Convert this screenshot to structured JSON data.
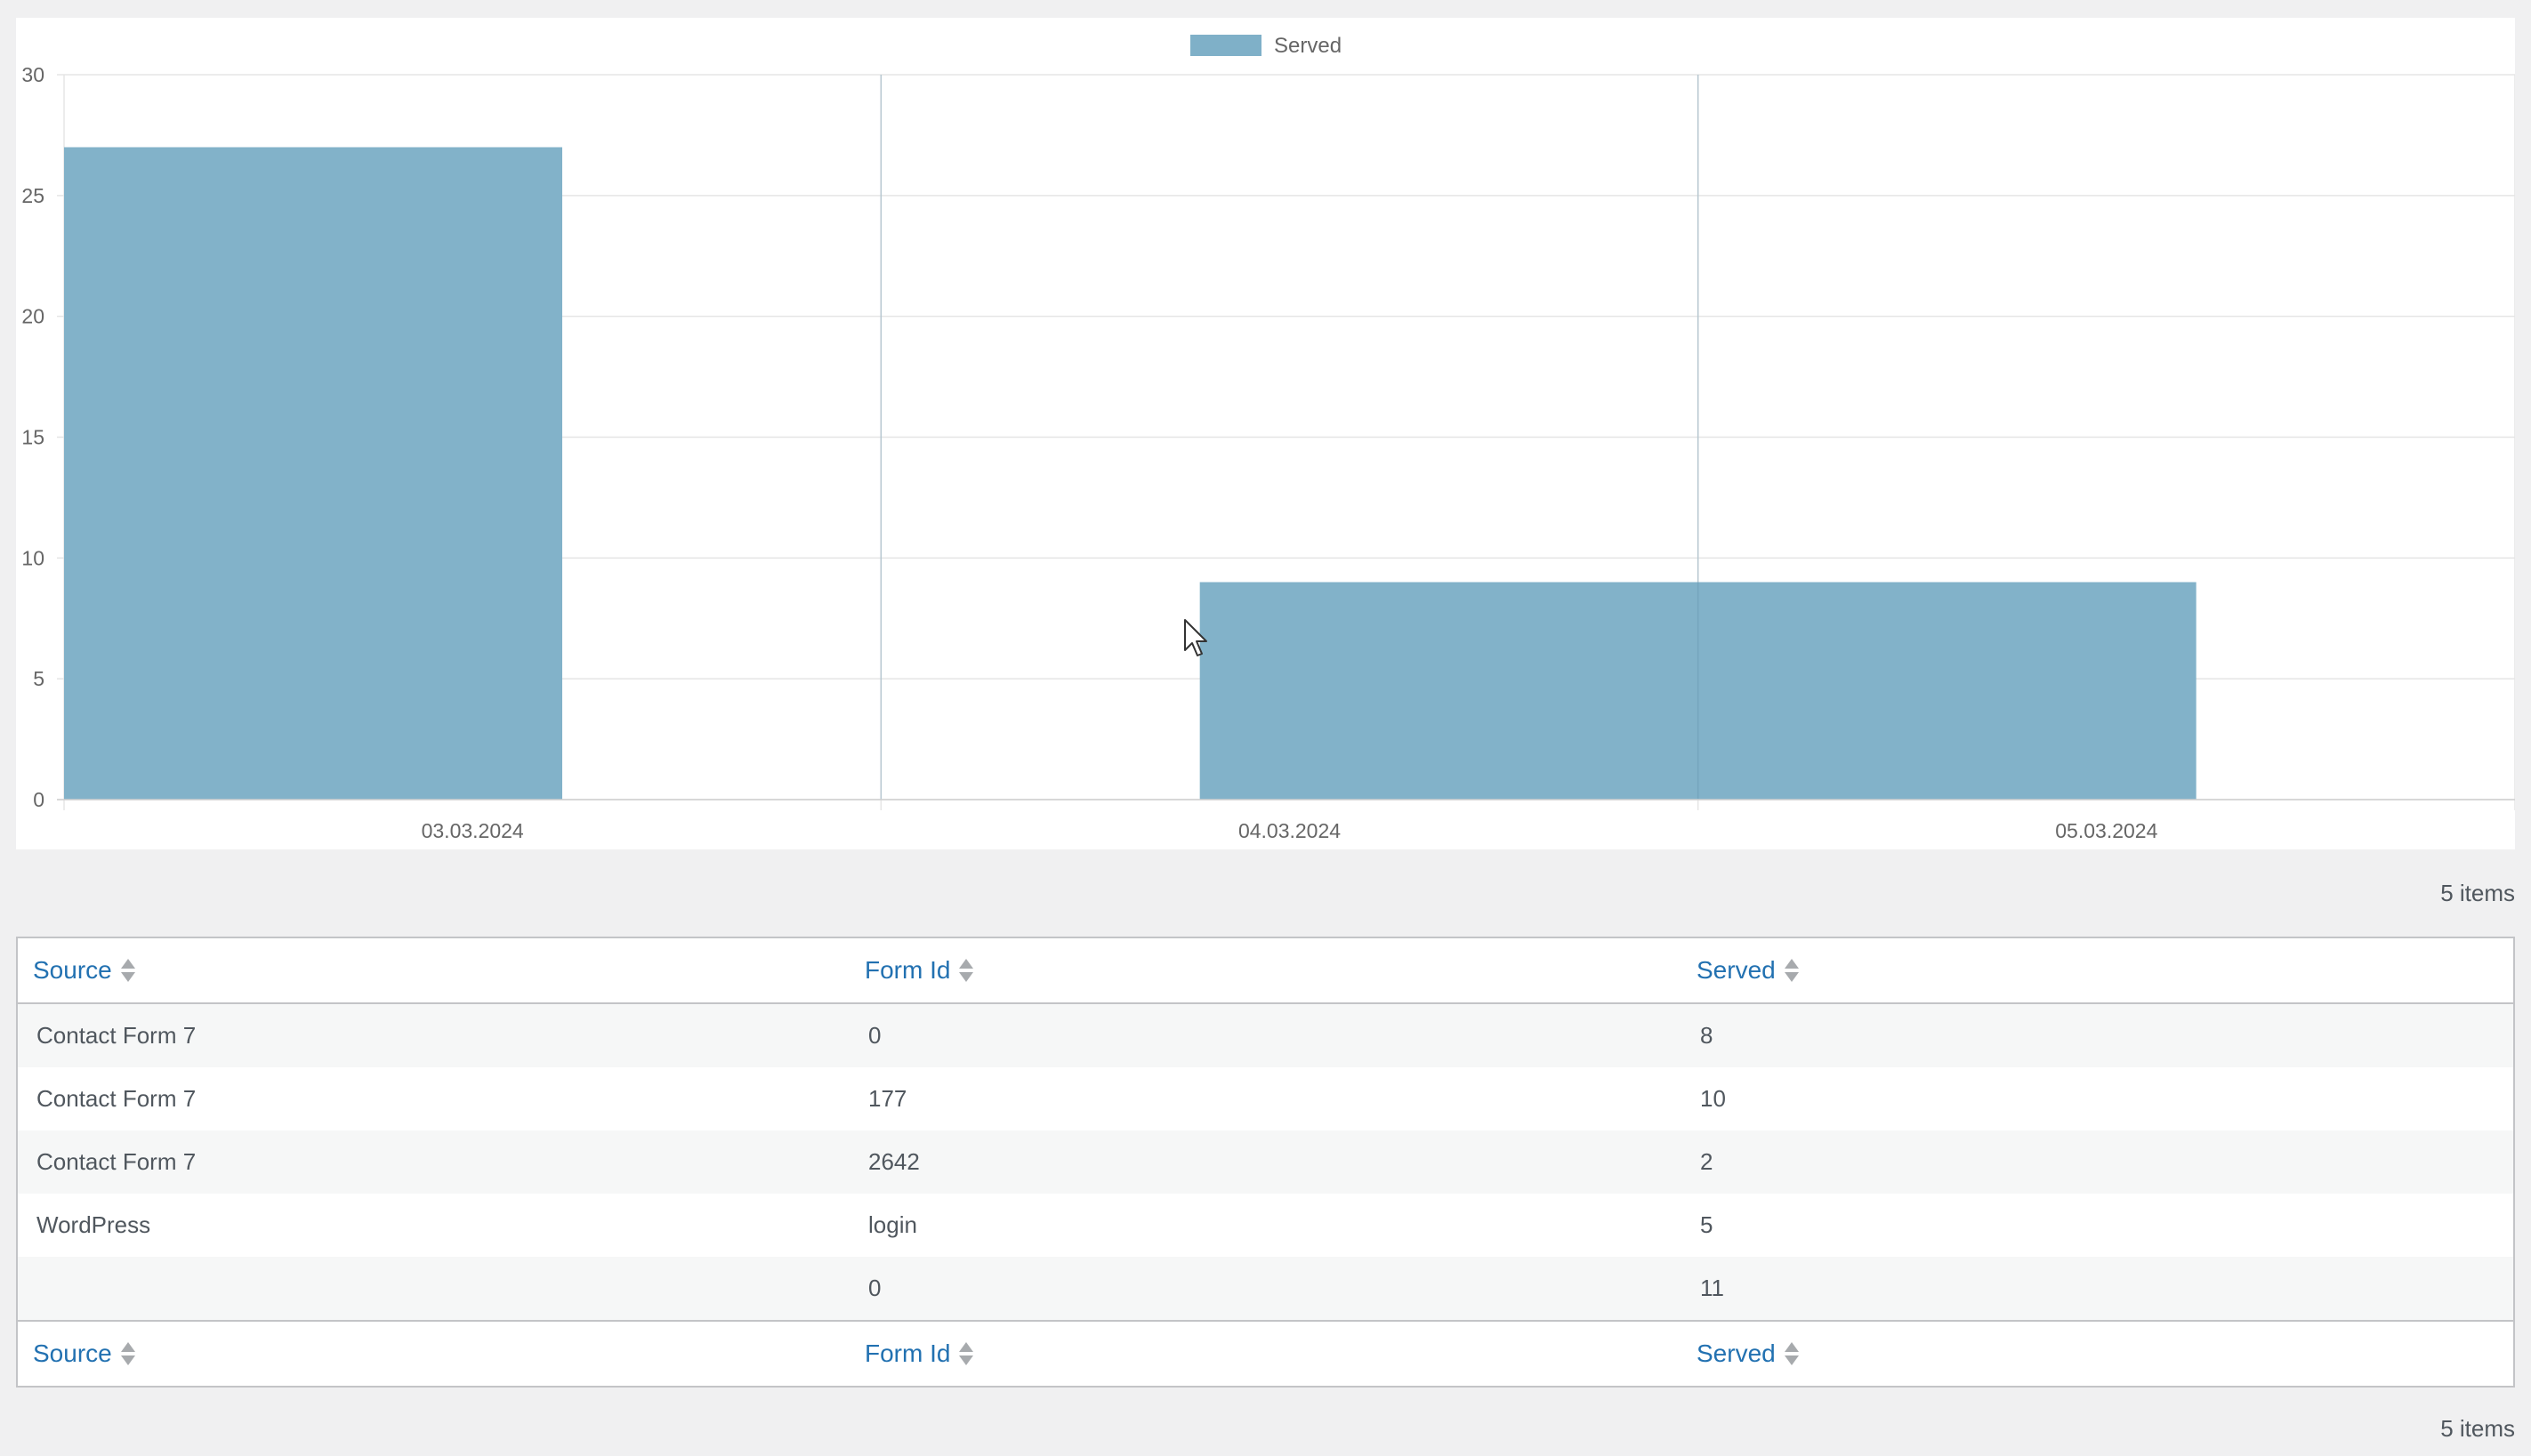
{
  "chart_data": {
    "type": "bar",
    "categories": [
      "03.03.2024",
      "04.03.2024",
      "05.03.2024"
    ],
    "series": [
      {
        "name": "Served",
        "values": [
          27,
          0,
          9
        ]
      }
    ],
    "ylim": [
      0,
      30
    ],
    "yticks": [
      0,
      5,
      10,
      15,
      20,
      25,
      30
    ],
    "legend_position": "top-center",
    "grid": true,
    "bar_color": "#7fb0c8"
  },
  "table": {
    "items_top": "5 items",
    "items_bottom": "5 items",
    "columns": [
      "Source",
      "Form Id",
      "Served"
    ],
    "rows": [
      [
        "Contact Form 7",
        "0",
        "8"
      ],
      [
        "Contact Form 7",
        "177",
        "10"
      ],
      [
        "Contact Form 7",
        "2642",
        "2"
      ],
      [
        "WordPress",
        "login",
        "5"
      ],
      [
        "",
        "0",
        "11"
      ]
    ],
    "sort_icon": "sort-arrows-icon"
  },
  "colors": {
    "link": "#2271b1",
    "page_bg": "#f0f0f1"
  }
}
